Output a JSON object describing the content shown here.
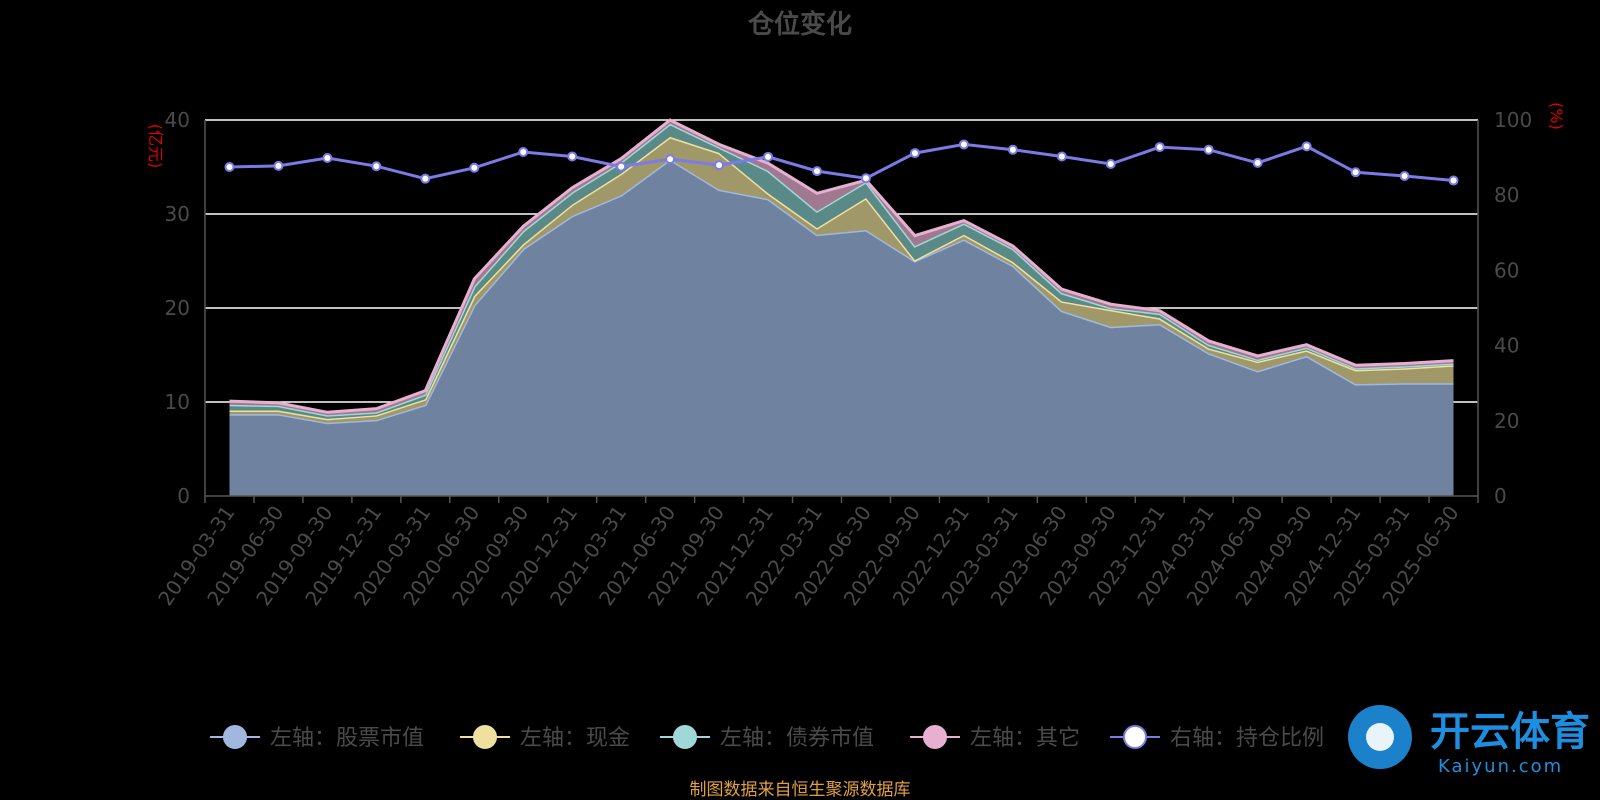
{
  "chart_data": {
    "type": "area",
    "title": "仓位变化",
    "left_axis": {
      "unit_label": "(亿元)",
      "ylim": [
        0,
        40
      ],
      "ticks": [
        0,
        10,
        20,
        30,
        40
      ]
    },
    "right_axis": {
      "unit_label": "(%)",
      "ylim": [
        0,
        100
      ],
      "ticks": [
        0,
        20,
        40,
        60,
        80,
        100
      ]
    },
    "grid": true,
    "legend_position": "bottom",
    "x": [
      "2019-03-31",
      "2019-06-30",
      "2019-09-30",
      "2019-12-31",
      "2020-03-31",
      "2020-06-30",
      "2020-09-30",
      "2020-12-31",
      "2021-03-31",
      "2021-06-30",
      "2021-09-30",
      "2021-12-31",
      "2022-03-31",
      "2022-06-30",
      "2022-09-30",
      "2022-12-31",
      "2023-03-31",
      "2023-06-30",
      "2023-09-30",
      "2023-12-31",
      "2024-03-31",
      "2024-06-30",
      "2024-09-30",
      "2024-12-31",
      "2025-03-31",
      "2025-06-30"
    ],
    "stacked_series": [
      {
        "name": "左轴：股票市值",
        "color": "#a0b8e0",
        "values": [
          8.7,
          8.7,
          7.8,
          8.1,
          9.7,
          20.3,
          26.3,
          29.8,
          32.0,
          35.8,
          32.6,
          31.6,
          27.8,
          28.3,
          25.0,
          27.3,
          24.5,
          19.7,
          18.0,
          18.3,
          15.2,
          13.3,
          14.9,
          11.9,
          12.0,
          12.0
        ]
      },
      {
        "name": "左轴：现金",
        "color": "#f0e0a0",
        "values": [
          0.4,
          0.4,
          0.4,
          0.5,
          0.6,
          1.0,
          0.5,
          1.2,
          2.3,
          2.4,
          3.9,
          0.6,
          0.7,
          3.4,
          0.1,
          0.5,
          0.4,
          1.0,
          1.8,
          0.6,
          0.5,
          1.0,
          0.6,
          1.5,
          1.6,
          1.9
        ]
      },
      {
        "name": "左轴：债券市值",
        "color": "#a0d8d8",
        "values": [
          0.6,
          0.5,
          0.4,
          0.3,
          0.5,
          1.0,
          1.4,
          1.3,
          1.2,
          1.4,
          0.6,
          2.4,
          1.8,
          1.7,
          1.5,
          1.2,
          1.4,
          0.9,
          0.2,
          0.5,
          0.4,
          0.2,
          0.3,
          0.2,
          0.2,
          0.2
        ]
      },
      {
        "name": "左轴：其它",
        "color": "#e8b0d0",
        "values": [
          0.4,
          0.3,
          0.3,
          0.4,
          0.4,
          0.8,
          0.5,
          0.5,
          0.4,
          0.4,
          0.3,
          0.8,
          1.9,
          0.2,
          1.1,
          0.3,
          0.3,
          0.4,
          0.4,
          0.3,
          0.4,
          0.4,
          0.3,
          0.3,
          0.3,
          0.3
        ]
      }
    ],
    "line_series": {
      "name": "右轴：持仓比例",
      "color": "#7b7be8",
      "axis": "right",
      "values": [
        87.5,
        87.8,
        89.9,
        87.7,
        84.4,
        87.3,
        91.5,
        90.3,
        87.6,
        89.6,
        88.0,
        90.2,
        86.4,
        84.5,
        91.2,
        93.5,
        92.1,
        90.3,
        88.3,
        92.8,
        92.1,
        88.6,
        93.0,
        86.1,
        85.1,
        83.9
      ]
    }
  },
  "source_text": "制图数据来自恒生聚源数据库",
  "watermark": {
    "title": "开云体育",
    "subtitle": "Kaiyun.com"
  }
}
